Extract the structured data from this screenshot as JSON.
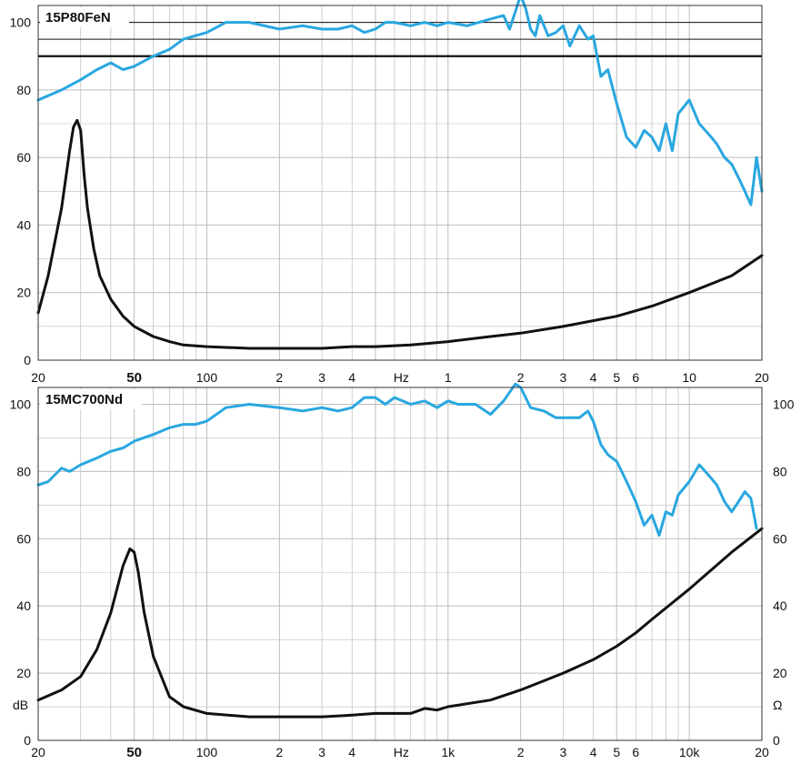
{
  "colors": {
    "spl": "#29a7e0",
    "impedance": "#111111",
    "grid": "#bdbdbd",
    "axis": "#333333"
  },
  "chart_data": [
    {
      "type": "line",
      "title": "15P80FeN",
      "x_scale": "log",
      "xlim": [
        20,
        20000
      ],
      "ylim": [
        0,
        105
      ],
      "grid": true,
      "reference_lines": [
        90,
        95,
        100
      ],
      "x_tick_labels": [
        "20",
        "50",
        "100",
        "2",
        "3",
        "4",
        "Hz",
        "1",
        "2",
        "3",
        "4",
        "5",
        "6",
        "10",
        "20"
      ],
      "y_tick_labels": [
        "0",
        "20",
        "40",
        "60",
        "80",
        "100"
      ],
      "series": [
        {
          "color": "#29a7e0",
          "x": [
            20,
            25,
            30,
            35,
            40,
            45,
            50,
            60,
            70,
            80,
            100,
            120,
            150,
            200,
            250,
            300,
            350,
            400,
            450,
            500,
            550,
            600,
            700,
            800,
            900,
            1000,
            1200,
            1500,
            1700,
            1800,
            2000,
            2100,
            2200,
            2300,
            2400,
            2600,
            2800,
            3000,
            3200,
            3500,
            3800,
            4000,
            4300,
            4600,
            5000,
            5500,
            6000,
            6500,
            7000,
            7500,
            8000,
            8500,
            9000,
            10000,
            11000,
            12000,
            13000,
            14000,
            15000,
            16000,
            17000,
            18000,
            19000,
            20000
          ],
          "y": [
            77,
            80,
            83,
            86,
            88,
            86,
            87,
            90,
            92,
            95,
            97,
            100,
            100,
            98,
            99,
            98,
            98,
            99,
            97,
            98,
            100,
            100,
            99,
            100,
            99,
            100,
            99,
            101,
            102,
            98,
            108,
            104,
            98,
            96,
            102,
            96,
            97,
            99,
            93,
            99,
            95,
            96,
            84,
            86,
            76,
            66,
            63,
            68,
            66,
            62,
            70,
            62,
            73,
            77,
            70,
            67,
            64,
            60,
            58,
            54,
            50,
            46,
            60,
            50
          ]
        },
        {
          "color": "#111111",
          "x": [
            20,
            22,
            25,
            27,
            28,
            29,
            30,
            31,
            32,
            34,
            36,
            40,
            45,
            50,
            60,
            70,
            80,
            100,
            150,
            200,
            300,
            400,
            500,
            700,
            1000,
            1500,
            2000,
            3000,
            5000,
            7000,
            10000,
            15000,
            20000
          ],
          "y": [
            14,
            25,
            45,
            62,
            69,
            71,
            68,
            55,
            45,
            33,
            25,
            18,
            13,
            10,
            7,
            5.5,
            4.5,
            4,
            3.5,
            3.5,
            3.5,
            4,
            4,
            4.5,
            5.5,
            7,
            8,
            10,
            13,
            16,
            20,
            25,
            31
          ]
        }
      ]
    },
    {
      "type": "line",
      "title": "15MC700Nd",
      "x_scale": "log",
      "xlim": [
        20,
        20000
      ],
      "ylim": [
        0,
        105
      ],
      "grid": true,
      "ylabel": "dB",
      "ylabel_right": "Ω",
      "x_tick_labels": [
        "20",
        "50",
        "100",
        "2",
        "3",
        "4",
        "Hz",
        "1k",
        "2",
        "3",
        "4",
        "5",
        "6",
        "10k",
        "20"
      ],
      "y_tick_labels": [
        "0",
        "20",
        "40",
        "60",
        "80",
        "100"
      ],
      "y_tick_labels_right": [
        "0",
        "20",
        "40",
        "60",
        "80",
        "100"
      ],
      "series": [
        {
          "color": "#29a7e0",
          "x": [
            20,
            22,
            25,
            27,
            30,
            35,
            40,
            45,
            50,
            60,
            70,
            80,
            90,
            100,
            120,
            150,
            200,
            250,
            300,
            350,
            400,
            450,
            500,
            550,
            600,
            700,
            800,
            900,
            1000,
            1100,
            1300,
            1500,
            1700,
            1900,
            2000,
            2200,
            2500,
            2800,
            3000,
            3500,
            3800,
            4000,
            4300,
            4600,
            5000,
            5500,
            6000,
            6500,
            7000,
            7500,
            8000,
            8500,
            9000,
            10000,
            11000,
            12000,
            13000,
            14000,
            15000,
            16000,
            17000,
            18000,
            19000
          ],
          "y": [
            76,
            77,
            81,
            80,
            82,
            84,
            86,
            87,
            89,
            91,
            93,
            94,
            94,
            95,
            99,
            100,
            99,
            98,
            99,
            98,
            99,
            102,
            102,
            100,
            102,
            100,
            101,
            99,
            101,
            100,
            100,
            97,
            101,
            106,
            105,
            99,
            98,
            96,
            96,
            96,
            98,
            95,
            88,
            85,
            83,
            77,
            71,
            64,
            67,
            61,
            68,
            67,
            73,
            77,
            82,
            79,
            76,
            71,
            68,
            71,
            74,
            72,
            63
          ]
        },
        {
          "color": "#111111",
          "x": [
            20,
            25,
            30,
            35,
            40,
            45,
            48,
            50,
            52,
            55,
            60,
            70,
            80,
            100,
            150,
            200,
            300,
            400,
            500,
            700,
            800,
            900,
            1000,
            1500,
            2000,
            3000,
            4000,
            5000,
            6000,
            7000,
            10000,
            15000,
            20000
          ],
          "y": [
            12,
            15,
            19,
            27,
            38,
            52,
            57,
            56,
            50,
            38,
            25,
            13,
            10,
            8,
            7,
            7,
            7,
            7.5,
            8,
            8,
            9.5,
            9,
            10,
            12,
            15,
            20,
            24,
            28,
            32,
            36,
            45,
            56,
            63
          ]
        }
      ]
    }
  ]
}
